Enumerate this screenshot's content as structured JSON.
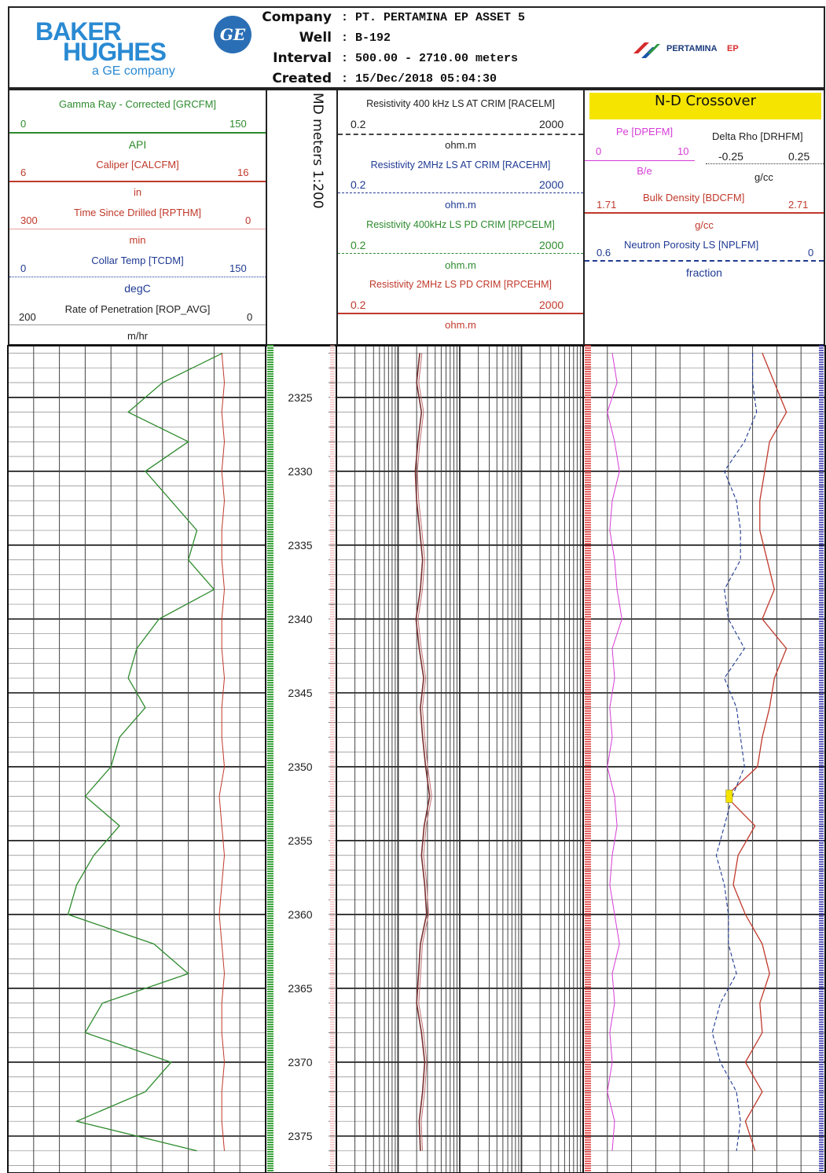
{
  "header": {
    "logo_main": "BAKER HUGHES",
    "logo_line1": "BAKER",
    "logo_line2": "HUGHES",
    "logo_sub": "a GE company",
    "ge_logo_text": "GE",
    "fields": [
      {
        "label": "Company",
        "value": "PT. PERTAMINA EP ASSET 5"
      },
      {
        "label": "Well",
        "value": "B-192"
      },
      {
        "label": "Interval",
        "value": "500.00 - 2710.00 meters"
      },
      {
        "label": "Created",
        "value": "15/Dec/2018 05:04:30"
      }
    ],
    "separator": ":",
    "pertamina_logo_text": "PERTAMINA",
    "pertamina_logo_suffix": "EP"
  },
  "colors": {
    "gamma": "#2e8b2e",
    "caliper": "#c0392b",
    "rpthm": "#c0392b",
    "tcdm": "#1f3a93",
    "rop": "#333333",
    "racelm": "#333333",
    "racehm": "#1f3a93",
    "rpcelm": "#2e8b2e",
    "rpcehm": "#c0392b",
    "pe": "#d63cd6",
    "drhfm": "#333333",
    "bdcfm": "#c0392b",
    "nplfm": "#1f3a93",
    "crossover": "#f5e400"
  },
  "track1": {
    "curves": [
      {
        "name": "Gamma Ray - Corrected [GRCFM]",
        "min": "0",
        "max": "150",
        "unit": "API"
      },
      {
        "name": "Caliper [CALCFM]",
        "min": "6",
        "max": "16",
        "unit": "in"
      },
      {
        "name": "Time Since Drilled [RPTHM]",
        "min": "300",
        "max": "0",
        "unit": "min"
      },
      {
        "name": "Collar Temp [TCDM]",
        "min": "0",
        "max": "150",
        "unit": "degC"
      },
      {
        "name": "Rate of Penetration [ROP_AVG]",
        "min": "200",
        "max": "0",
        "unit": "m/hr"
      }
    ]
  },
  "depth_track": {
    "title": "MD meters 1:200"
  },
  "track2": {
    "curves": [
      {
        "name": "Resistivity 400 kHz LS AT CRIM [RACELM]",
        "min": "0.2",
        "max": "2000",
        "unit": "ohm.m"
      },
      {
        "name": "Resistivity 2MHz LS AT CRIM [RACEHM]",
        "min": "0.2",
        "max": "2000",
        "unit": "ohm.m"
      },
      {
        "name": "Resistivity 400kHz LS PD CRIM [RPCELM]",
        "min": "0.2",
        "max": "2000",
        "unit": "ohm.m"
      },
      {
        "name": "Resistivity 2MHz LS PD CRIM [RPCEHM]",
        "min": "0.2",
        "max": "2000",
        "unit": "ohm.m"
      }
    ]
  },
  "track3": {
    "title": "N-D Crossover",
    "pe": {
      "name": "Pe [DPEFM]",
      "min": "0",
      "max": "10",
      "unit": "B/e"
    },
    "drhfm": {
      "name": "Delta Rho [DRHFM]",
      "min": "-0.25",
      "max": "0.25",
      "unit": "g/cc"
    },
    "bdcfm": {
      "name": "Bulk Density [BDCFM]",
      "min": "1.71",
      "max": "2.71",
      "unit": "g/cc"
    },
    "nplfm": {
      "name": "Neutron Porosity LS [NPLFM]",
      "min": "0.6",
      "max": "0",
      "unit": "fraction"
    }
  },
  "chart_data": {
    "type": "line",
    "title": "",
    "depth_axis": {
      "label": "MD meters 1:200",
      "range": [
        2321.5,
        2377.5
      ],
      "ticks": [
        2325,
        2330,
        2335,
        2340,
        2345,
        2350,
        2355,
        2360,
        2365,
        2370,
        2375
      ]
    },
    "depth_labels": [
      "2325",
      "2330",
      "2335",
      "2340",
      "2345",
      "2350",
      "2355",
      "2360",
      "2365",
      "2370",
      "2375"
    ],
    "depths": [
      2322,
      2324,
      2326,
      2328,
      2330,
      2332,
      2334,
      2336,
      2338,
      2340,
      2342,
      2344,
      2346,
      2348,
      2350,
      2352,
      2354,
      2356,
      2358,
      2360,
      2362,
      2364,
      2366,
      2368,
      2370,
      2372,
      2374,
      2376
    ],
    "series": [
      {
        "name": "Gamma Ray - Corrected [GRCFM]",
        "unit": "API",
        "range": [
          0,
          150
        ],
        "values": [
          125,
          90,
          70,
          105,
          80,
          95,
          110,
          105,
          120,
          88,
          75,
          70,
          80,
          65,
          60,
          45,
          65,
          50,
          40,
          35,
          85,
          105,
          55,
          45,
          95,
          80,
          40,
          110
        ]
      },
      {
        "name": "Caliper [CALCFM]",
        "unit": "in",
        "range": [
          6,
          16
        ],
        "values": [
          14.3,
          14.4,
          14.3,
          14.4,
          14.3,
          14.4,
          14.3,
          14.3,
          14.4,
          14.3,
          14.3,
          14.4,
          14.3,
          14.3,
          14.4,
          14.2,
          14.3,
          14.4,
          14.3,
          14.2,
          14.3,
          14.4,
          14.3,
          14.3,
          14.4,
          14.3,
          14.3,
          14.4
        ]
      },
      {
        "name": "Resistivity 400 kHz LS AT CRIM [RACELM]",
        "unit": "ohm.m",
        "range": [
          0.2,
          2000
        ],
        "values": [
          4.5,
          4.0,
          4.8,
          4.2,
          3.8,
          4.0,
          4.5,
          5.0,
          4.6,
          3.9,
          4.4,
          5.2,
          4.6,
          5.0,
          5.6,
          6.5,
          5.3,
          4.8,
          5.4,
          5.8,
          4.6,
          4.3,
          4.0,
          4.8,
          5.4,
          5.0,
          4.4,
          4.6
        ]
      },
      {
        "name": "Bulk Density [BDCFM]",
        "unit": "g/cc",
        "range": [
          1.71,
          2.71
        ],
        "values": [
          2.45,
          2.5,
          2.55,
          2.48,
          2.46,
          2.44,
          2.44,
          2.47,
          2.5,
          2.45,
          2.55,
          2.5,
          2.48,
          2.45,
          2.43,
          2.3,
          2.42,
          2.35,
          2.33,
          2.38,
          2.45,
          2.48,
          2.44,
          2.45,
          2.38,
          2.45,
          2.38,
          2.42
        ]
      },
      {
        "name": "Neutron Porosity LS [NPLFM]",
        "unit": "fraction",
        "range": [
          0.6,
          0
        ],
        "values": [
          0.18,
          0.18,
          0.17,
          0.2,
          0.25,
          0.22,
          0.21,
          0.21,
          0.25,
          0.24,
          0.2,
          0.25,
          0.22,
          0.21,
          0.2,
          0.23,
          0.25,
          0.27,
          0.25,
          0.24,
          0.24,
          0.22,
          0.26,
          0.28,
          0.26,
          0.22,
          0.21,
          0.22
        ]
      },
      {
        "name": "Pe [DPEFM]",
        "unit": "B/e",
        "range": [
          0,
          10
        ],
        "values": [
          1.2,
          1.4,
          1.0,
          1.3,
          1.5,
          1.2,
          1.1,
          1.3,
          1.4,
          1.6,
          1.2,
          1.3,
          1.1,
          1.2,
          1.0,
          1.3,
          1.4,
          1.2,
          1.1,
          1.3,
          1.5,
          1.2,
          1.3,
          1.1,
          1.2,
          1.0,
          1.3,
          1.2
        ]
      }
    ],
    "grid": true
  }
}
